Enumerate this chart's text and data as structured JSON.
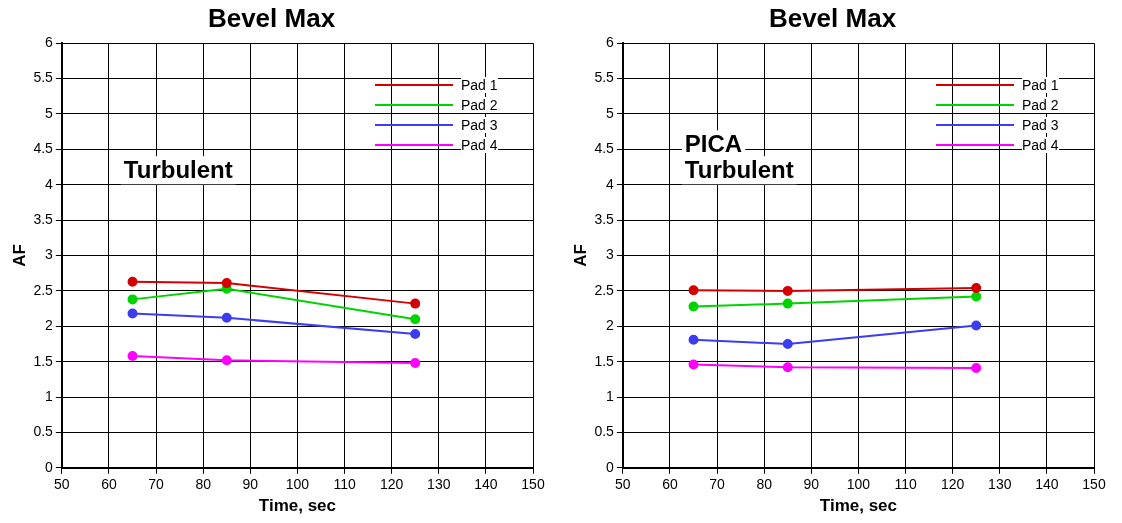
{
  "chart_data": [
    {
      "type": "line",
      "title": "Bevel Max",
      "xlabel": "Time, sec",
      "ylabel": "AF",
      "x": [
        65,
        85,
        125
      ],
      "series": [
        {
          "name": "Pad 1",
          "color": "#d40000",
          "values": [
            2.63,
            2.61,
            2.32
          ]
        },
        {
          "name": "Pad 2",
          "color": "#00d400",
          "values": [
            2.38,
            2.53,
            2.1
          ]
        },
        {
          "name": "Pad 3",
          "color": "#3c3cf0",
          "values": [
            2.18,
            2.12,
            1.89
          ]
        },
        {
          "name": "Pad 4",
          "color": "#ff00ff",
          "values": [
            1.58,
            1.52,
            1.48
          ]
        }
      ],
      "xlim": [
        50,
        150
      ],
      "xticks": [
        50,
        60,
        70,
        80,
        90,
        100,
        110,
        120,
        130,
        140,
        150
      ],
      "ylim": [
        0,
        6
      ],
      "yticks": [
        0,
        0.5,
        1,
        1.5,
        2,
        2.5,
        3,
        3.5,
        4,
        4.5,
        5,
        5.5,
        6
      ],
      "grid": true,
      "legend": "top right",
      "marker": "circle",
      "line_style": "solid",
      "annotations": [
        "Turbulent"
      ]
    },
    {
      "type": "line",
      "title": "Bevel Max",
      "xlabel": "Time, sec",
      "ylabel": "AF",
      "x": [
        65,
        85,
        125
      ],
      "series": [
        {
          "name": "Pad 1",
          "color": "#d40000",
          "values": [
            2.51,
            2.5,
            2.54
          ]
        },
        {
          "name": "Pad 2",
          "color": "#00d400",
          "values": [
            2.28,
            2.32,
            2.42
          ]
        },
        {
          "name": "Pad 3",
          "color": "#3c3cf0",
          "values": [
            1.81,
            1.75,
            2.01
          ]
        },
        {
          "name": "Pad 4",
          "color": "#ff00ff",
          "values": [
            1.46,
            1.42,
            1.41
          ]
        }
      ],
      "xlim": [
        50,
        150
      ],
      "xticks": [
        50,
        60,
        70,
        80,
        90,
        100,
        110,
        120,
        130,
        140,
        150
      ],
      "ylim": [
        0,
        6
      ],
      "yticks": [
        0,
        0.5,
        1,
        1.5,
        2,
        2.5,
        3,
        3.5,
        4,
        4.5,
        5,
        5.5,
        6
      ],
      "grid": true,
      "legend": "top right",
      "marker": "circle",
      "line_style": "solid",
      "annotations": [
        "PICA Turbulent"
      ]
    }
  ]
}
